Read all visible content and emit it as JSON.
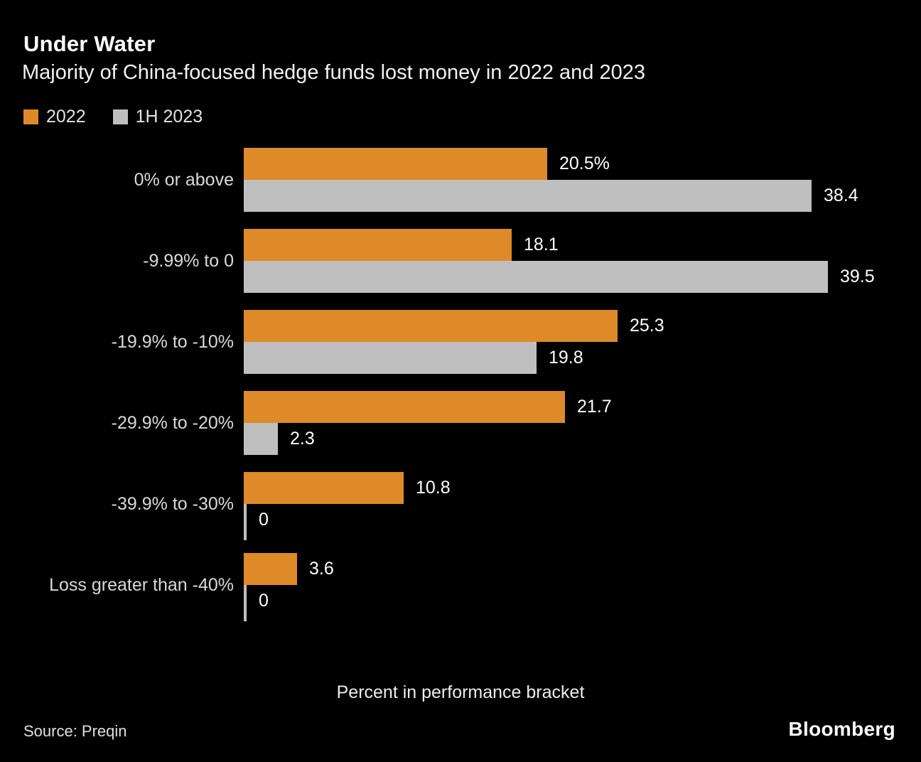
{
  "header": {
    "title": "Under Water",
    "subtitle": "Majority of China-focused hedge funds lost money in 2022 and 2023"
  },
  "legend": [
    {
      "label": "2022",
      "color": "#de8a28"
    },
    {
      "label": "1H 2023",
      "color": "#bfbfbf"
    }
  ],
  "chart_data": {
    "type": "bar",
    "orientation": "horizontal",
    "title": "Under Water",
    "subtitle": "Majority of China-focused hedge funds lost money in 2022 and 2023",
    "categories": [
      "0% or above",
      "-9.99% to 0",
      "-19.9% to -10%",
      "-29.9% to -20%",
      "-39.9% to -30%",
      "Loss greater than -40%"
    ],
    "series": [
      {
        "name": "2022",
        "color": "#de8a28",
        "values": [
          20.5,
          18.1,
          25.3,
          21.7,
          10.8,
          3.6
        ],
        "labels": [
          "20.5%",
          "18.1",
          "25.3",
          "21.7",
          "10.8",
          "3.6"
        ]
      },
      {
        "name": "1H 2023",
        "color": "#bfbfbf",
        "values": [
          38.4,
          39.5,
          19.8,
          2.3,
          0,
          0
        ],
        "labels": [
          "38.4",
          "39.5",
          "19.8",
          "2.3",
          "0",
          "0"
        ]
      }
    ],
    "xlabel": "Percent in performance bracket",
    "ylabel": "",
    "xlim": [
      0,
      39.5
    ],
    "grid": false,
    "legend_position": "top-left",
    "background": "#000000"
  },
  "footer": {
    "source": "Source: Preqin",
    "brand": "Bloomberg"
  }
}
